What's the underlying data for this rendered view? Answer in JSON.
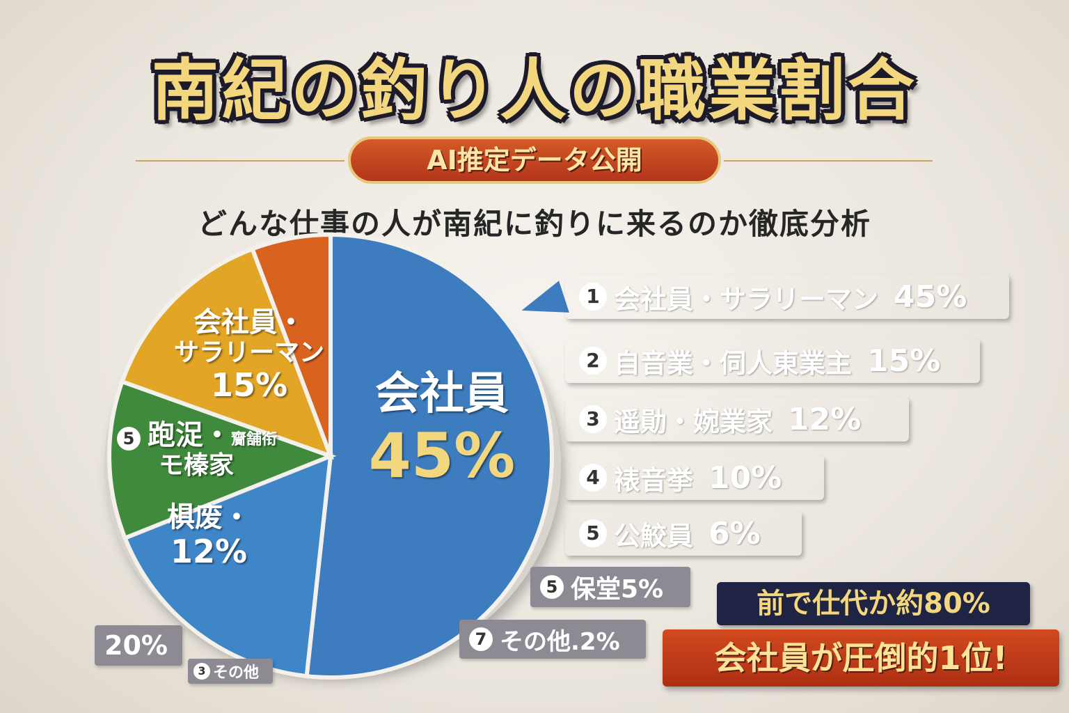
{
  "title": "南紀の釣り人の職業割合",
  "badge": "AI推定データ公開",
  "subtitle": "どんな仕事の人が南紀に釣りに来るのか徹底分析",
  "colors": {
    "blue": "#3d7dbf",
    "green": "#3f8a3c",
    "yellow": "#e2a525",
    "orange": "#d9621f",
    "red": "#c53a1d",
    "gray": "#8a8792"
  },
  "pie_labels": {
    "main_name": "会社員",
    "main_pct": "45%",
    "upper_name_1": "会社員・",
    "upper_name_2": "サラリーマン",
    "upper_pct": "15%",
    "green_num": "5",
    "green_name_1": "跑浞・",
    "green_name_small": "齎舗衔",
    "green_name_2": "モ榛家",
    "yellow_name": "椇废・",
    "yellow_pct": "12%"
  },
  "legend": [
    {
      "num": "1",
      "name": "会社員・サラリーマン",
      "pct": "45%",
      "color": "#3d7dbf"
    },
    {
      "num": "2",
      "name": "自音業・伺人東業主",
      "pct": "15%",
      "color": "#3f8a3c"
    },
    {
      "num": "3",
      "name": "遥勛・婉業家",
      "pct": "12%",
      "color": "#e2a525"
    },
    {
      "num": "4",
      "name": "裱音挙",
      "pct": "10%",
      "color": "#e8b03a"
    },
    {
      "num": "5",
      "name": "公鮫員",
      "pct": "6%",
      "color": "#c53a1d"
    }
  ],
  "small_tags": {
    "tag_a_num": "5",
    "tag_a_text": "保堂5%",
    "tag_b_num": "7",
    "tag_b_text": "その他.2%",
    "tag_c_text": "20%",
    "tag_d_num": "3",
    "tag_d_text": "その他"
  },
  "summary": {
    "line1": "前で仕代か約80%",
    "line2": "会社員が圧倒的1位!"
  },
  "chart_data": {
    "type": "pie",
    "title": "南紀の釣り人の職業割合",
    "subtitle": "どんな仕事の人が南紀に釣りに来るのか徹底分析",
    "slices": [
      {
        "label": "会社員",
        "value": 45,
        "color": "#3d7dbf"
      },
      {
        "label": "会社員・サラリーマン",
        "value": 15,
        "color": "#3f86c9"
      },
      {
        "label": "跑浞・モ榛家",
        "value": 10,
        "color": "#3f8a3c"
      },
      {
        "label": "椇废・",
        "value": 12,
        "color": "#e2a525"
      },
      {
        "label": "",
        "value": 5,
        "color": "#d9621f"
      }
    ]
  }
}
